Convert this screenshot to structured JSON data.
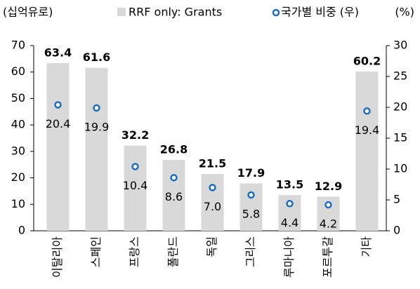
{
  "chart_data": {
    "type": "bar",
    "y_label": "(십억유로)",
    "y2_label": "(%)",
    "categories": [
      "이탈리아",
      "스페인",
      "프랑스",
      "폴란드",
      "독일",
      "그리스",
      "루마니아",
      "포르투갈",
      "기타"
    ],
    "series": [
      {
        "name": "RRF only: Grants",
        "color": "#d9d9d9",
        "values": [
          63.4,
          61.6,
          32.2,
          26.8,
          21.5,
          17.9,
          13.5,
          12.9,
          60.2
        ]
      },
      {
        "name": "국가별 비중 (우)",
        "color": "#1f6fc0",
        "axis": "y2",
        "values": [
          20.4,
          19.9,
          10.4,
          8.6,
          7.0,
          5.8,
          4.4,
          4.2,
          19.4
        ],
        "value_labels": [
          "20.4",
          "19.9",
          "10.4",
          "8.6",
          "7.0",
          "5.8",
          "4.4",
          "4.2",
          "19.4"
        ]
      }
    ],
    "ylim": [
      0,
      70
    ],
    "yticks": [
      0,
      10,
      20,
      30,
      40,
      50,
      60,
      70
    ],
    "y2lim": [
      0,
      30
    ],
    "y2ticks": [
      0,
      5,
      10,
      15,
      20,
      25,
      30
    ]
  }
}
